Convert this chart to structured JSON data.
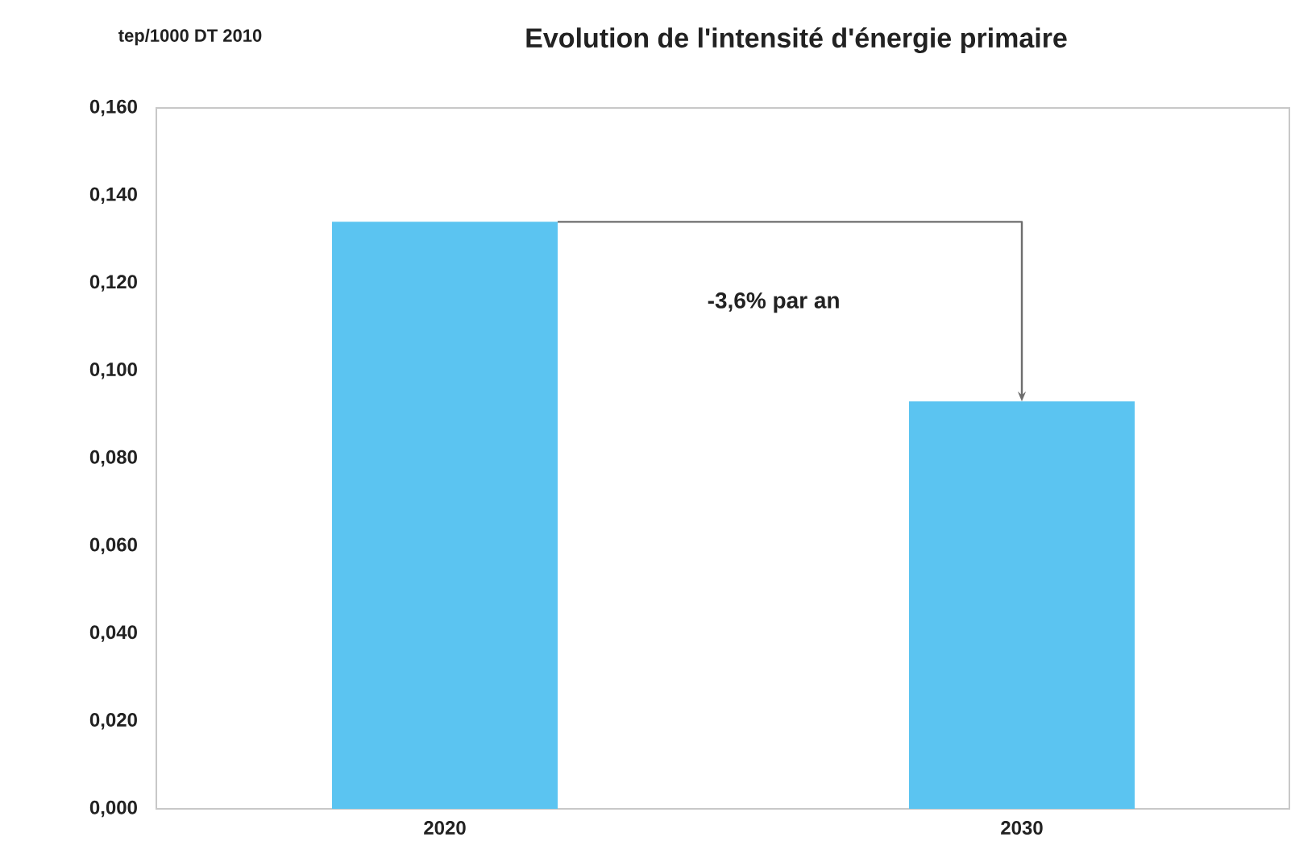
{
  "chart_data": {
    "type": "bar",
    "title": "Evolution de l'intensité d'énergie primaire",
    "ylabel": "tep/1000 DT 2010",
    "categories": [
      "2020",
      "2030"
    ],
    "values": [
      0.134,
      0.093
    ],
    "color": "#5bc4f1",
    "ylim": [
      0,
      0.16
    ],
    "yticks": [
      {
        "value": 0,
        "label": "0,000"
      },
      {
        "value": 0.02,
        "label": "0,020"
      },
      {
        "value": 0.04,
        "label": "0,040"
      },
      {
        "value": 0.06,
        "label": "0,060"
      },
      {
        "value": 0.08,
        "label": "0,080"
      },
      {
        "value": 0.1,
        "label": "0,100"
      },
      {
        "value": 0.12,
        "label": "0,120"
      },
      {
        "value": 0.14,
        "label": "0,140"
      },
      {
        "value": 0.16,
        "label": "0,160"
      }
    ],
    "annotations": [
      "-3,6% par an"
    ],
    "grid": false
  }
}
